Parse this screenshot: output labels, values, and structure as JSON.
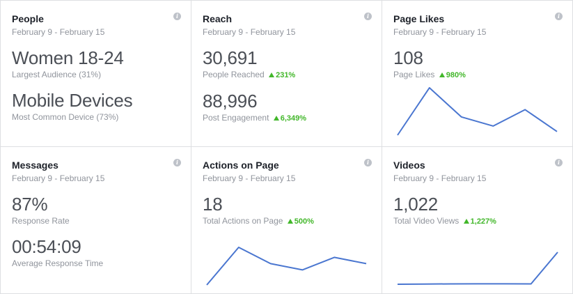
{
  "info_glyph": "i",
  "colors": {
    "line": "#4a76d0",
    "positive": "#42b72a"
  },
  "cards": {
    "people": {
      "title": "People",
      "date": "February 9 - February 15",
      "m1_value": "Women 18-24",
      "m1_label": "Largest Audience (31%)",
      "m2_value": "Mobile Devices",
      "m2_label": "Most Common Device (73%)"
    },
    "reach": {
      "title": "Reach",
      "date": "February 9 - February 15",
      "m1_value": "30,691",
      "m1_label": "People Reached",
      "m1_delta": "231%",
      "m2_value": "88,996",
      "m2_label": "Post Engagement",
      "m2_delta": "6,349%"
    },
    "likes": {
      "title": "Page Likes",
      "date": "February 9 - February 15",
      "m1_value": "108",
      "m1_label": "Page Likes",
      "m1_delta": "980%"
    },
    "messages": {
      "title": "Messages",
      "date": "February 9 - February 15",
      "m1_value": "87%",
      "m1_label": "Response Rate",
      "m2_value": "00:54:09",
      "m2_label": "Average Response Time"
    },
    "actions": {
      "title": "Actions on Page",
      "date": "February 9 - February 15",
      "m1_value": "18",
      "m1_label": "Total Actions on Page",
      "m1_delta": "500%"
    },
    "videos": {
      "title": "Videos",
      "date": "February 9 - February 15",
      "m1_value": "1,022",
      "m1_label": "Total Video Views",
      "m1_delta": "1,227%"
    }
  },
  "chart_data": [
    {
      "type": "line",
      "card": "likes",
      "values": [
        2,
        28,
        12,
        7,
        16,
        4
      ]
    },
    {
      "type": "line",
      "card": "actions",
      "values": [
        0,
        30,
        17,
        12,
        22,
        17
      ]
    },
    {
      "type": "line",
      "card": "videos",
      "values": [
        0,
        0.2,
        0.3,
        0.4,
        0.4,
        0.3,
        30
      ]
    }
  ]
}
